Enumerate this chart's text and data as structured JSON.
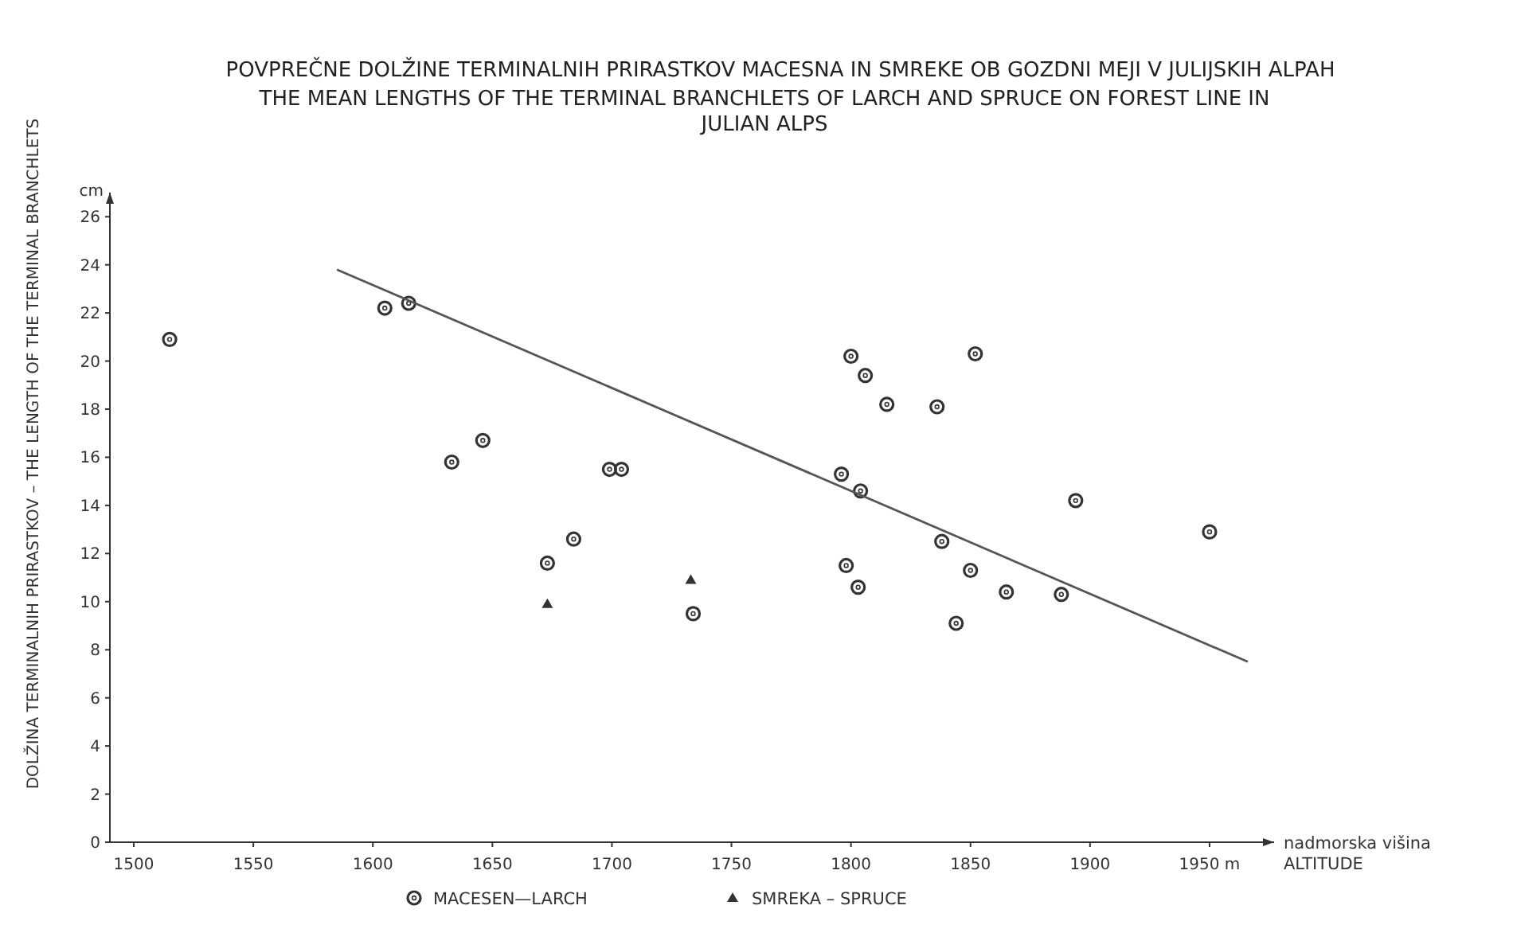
{
  "chart_data": {
    "type": "scatter",
    "title": "POVPREČNE DOLŽINE TERMINALNIH PRIRASTKOV MACESNA IN SMREKE OB GOZDNI MEJI V JULIJSKIH ALPAH",
    "subtitle": "THE MEAN LENGTHS OF THE TERMINAL BRANCHLETS OF LARCH AND SPRUCE ON FOREST LINE IN JULIAN ALPS",
    "xlabel": "nadmorska višina\nALTITUDE",
    "ylabel": "DOLŽINA TERMINALNIH PRIRASTKOV – THE LENGTH OF THE TERMINAL BRANCHLETS",
    "annotations": [
      "cm"
    ],
    "xlim": [
      1490,
      1977
    ],
    "xticks": [
      1500,
      1550,
      1600,
      1650,
      1700,
      1750,
      1800,
      1850,
      1900,
      {
        "value": 1950,
        "label": "1950 m"
      }
    ],
    "ylim": [
      0,
      27
    ],
    "yticks": [
      0,
      2,
      4,
      6,
      8,
      10,
      12,
      14,
      16,
      18,
      20,
      22,
      24,
      26
    ],
    "grid": false,
    "legend": "bottom",
    "series": [
      {
        "name": "MACESEN—LARCH",
        "color": "#333333",
        "marker": "circle",
        "x": [
          1515,
          1605,
          1615,
          1633,
          1646,
          1673,
          1684,
          1699,
          1704,
          1734,
          1800,
          1806,
          1815,
          1836,
          1852,
          1796,
          1804,
          1894,
          1950,
          1838,
          1798,
          1803,
          1850,
          1865,
          1888,
          1844
        ],
        "values": [
          20.9,
          22.2,
          22.4,
          15.8,
          16.7,
          11.6,
          12.6,
          15.5,
          15.5,
          9.5,
          20.2,
          19.4,
          18.2,
          18.1,
          20.3,
          15.3,
          14.6,
          14.2,
          12.9,
          12.5,
          11.5,
          10.6,
          11.3,
          10.4,
          10.3,
          9.1
        ]
      },
      {
        "name": "SMREKA – SPRUCE",
        "color": "#333333",
        "marker": "triangle",
        "x": [
          1673,
          1733
        ],
        "values": [
          9.9,
          10.9
        ]
      },
      {
        "type": "line",
        "color": "#555555",
        "marker": "none",
        "line_style": "solid",
        "x": [
          1585,
          1966
        ],
        "values": [
          23.8,
          7.5
        ]
      }
    ]
  }
}
